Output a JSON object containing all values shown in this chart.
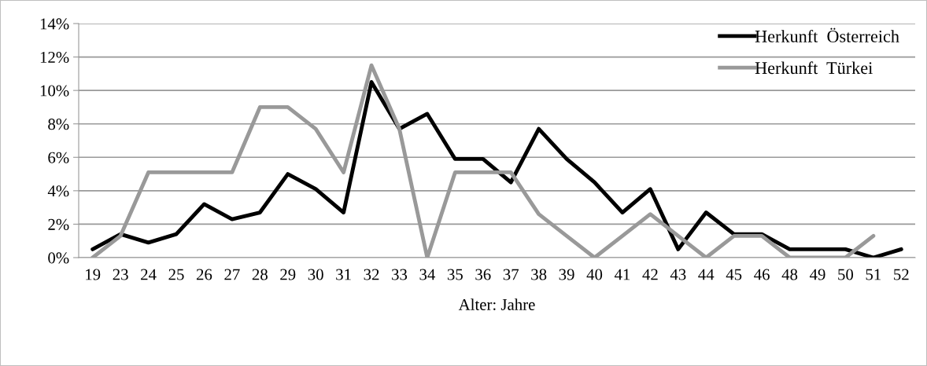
{
  "chart_data": {
    "type": "line",
    "xlabel": "Alter: Jahre",
    "categories": [
      "19",
      "23",
      "24",
      "25",
      "26",
      "27",
      "28",
      "29",
      "30",
      "31",
      "32",
      "33",
      "34",
      "35",
      "36",
      "37",
      "38",
      "39",
      "40",
      "41",
      "42",
      "43",
      "44",
      "45",
      "46",
      "48",
      "49",
      "50",
      "51",
      "52"
    ],
    "series": [
      {
        "name": "Herkunft  Österreich",
        "color": "#000000",
        "values": [
          0.5,
          1.4,
          0.9,
          1.4,
          3.2,
          2.3,
          2.7,
          5.0,
          4.1,
          2.7,
          10.5,
          7.7,
          8.6,
          5.9,
          5.9,
          4.5,
          7.7,
          5.9,
          4.5,
          2.7,
          4.1,
          0.5,
          2.7,
          1.4,
          1.4,
          0.5,
          0.5,
          0.5,
          0,
          0.5
        ]
      },
      {
        "name": "Herkunft  Türkei",
        "color": "#999999",
        "values": [
          0,
          1.3,
          5.1,
          5.1,
          5.1,
          5.1,
          9.0,
          9.0,
          7.7,
          5.1,
          11.5,
          7.7,
          0,
          5.1,
          5.1,
          5.1,
          2.6,
          1.3,
          0,
          1.3,
          2.6,
          1.3,
          0,
          1.3,
          1.3,
          0,
          0,
          0,
          1.3,
          null
        ]
      }
    ],
    "ylim": [
      0,
      14
    ],
    "yticks": [
      {
        "value": 0,
        "label": "0%"
      },
      {
        "value": 2,
        "label": "2%"
      },
      {
        "value": 4,
        "label": "4%"
      },
      {
        "value": 6,
        "label": "6%"
      },
      {
        "value": 8,
        "label": "8%"
      },
      {
        "value": 10,
        "label": "10%"
      },
      {
        "value": 12,
        "label": "12%"
      },
      {
        "value": 14,
        "label": "14%"
      }
    ],
    "grid": "y",
    "legend": "top right",
    "marker": "none",
    "line_style": "solid"
  }
}
